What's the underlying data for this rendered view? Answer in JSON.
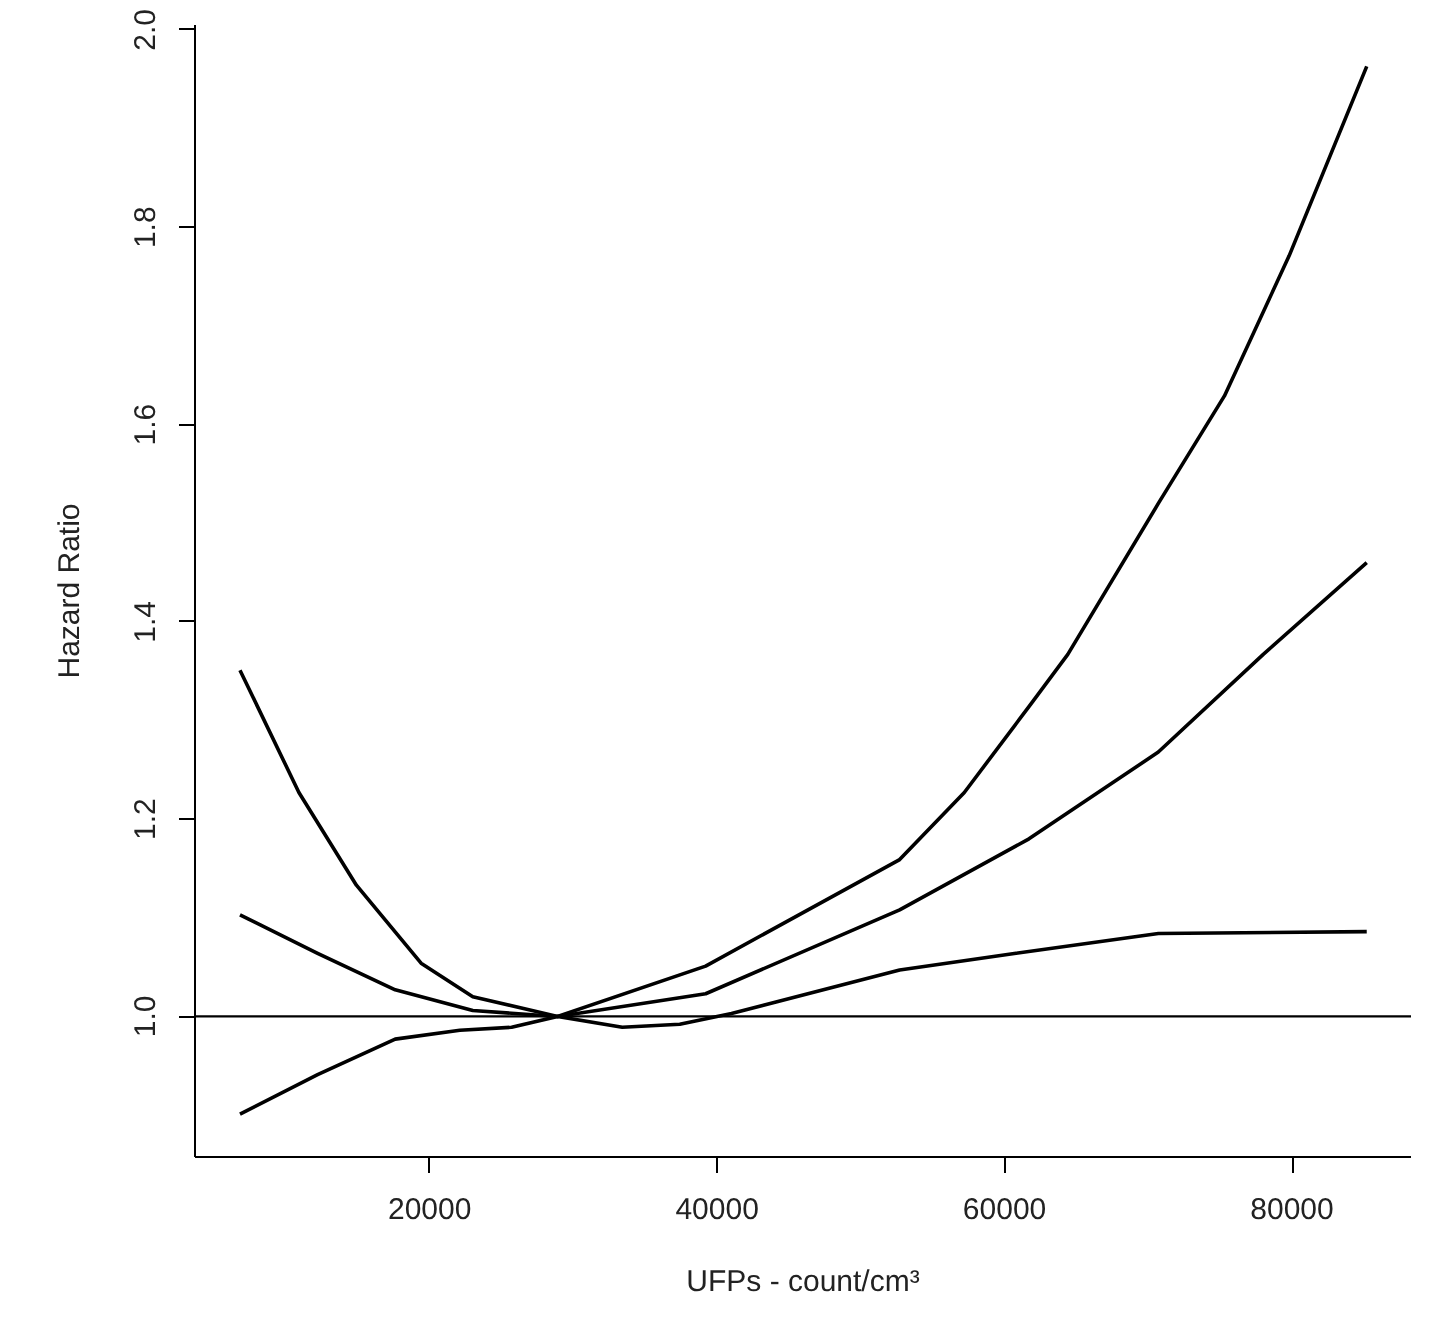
{
  "chart_data": {
    "type": "line",
    "xlabel": "UFPs - count/cm³",
    "ylabel": "Hazard Ratio",
    "xlim": [
      3670,
      88280
    ],
    "ylim": [
      0.8575,
      2.005
    ],
    "xticks": [
      20000,
      40000,
      60000,
      80000
    ],
    "yticks": [
      {
        "value": 1.0,
        "label": "1.0"
      },
      {
        "value": 1.2,
        "label": "1.2"
      },
      {
        "value": 1.4,
        "label": "1.4"
      },
      {
        "value": 1.6,
        "label": "1.6"
      },
      {
        "value": 1.8,
        "label": "1.8"
      },
      {
        "value": 2.0,
        "label": "2.0"
      }
    ],
    "grid": false,
    "marker": "none",
    "line_style": "solid",
    "ref_lines": [
      {
        "axis": "y",
        "value": 1.0,
        "color": "#000000"
      }
    ],
    "series": [
      {
        "color": "#000000",
        "x": [
          6800,
          12200,
          17600,
          23000,
          28900,
          39200,
          52700,
          61700,
          70700,
          78000,
          85200
        ],
        "values": [
          1.103,
          1.064,
          1.027,
          1.006,
          1.0,
          1.023,
          1.108,
          1.18,
          1.268,
          1.367,
          1.46
        ]
      },
      {
        "color": "#000000",
        "x": [
          6800,
          10900,
          14900,
          19400,
          23000,
          28900,
          39200,
          52700,
          57200,
          61800,
          64400,
          70700,
          75300,
          79800,
          85200
        ],
        "values": [
          1.351,
          1.227,
          1.133,
          1.054,
          1.02,
          1.0,
          1.051,
          1.159,
          1.227,
          1.316,
          1.367,
          1.52,
          1.629,
          1.771,
          1.963
        ]
      },
      {
        "color": "#000000",
        "x": [
          6800,
          12200,
          17600,
          22100,
          25700,
          28900,
          33400,
          37400,
          41000,
          52700,
          60800,
          70700,
          85200
        ],
        "values": [
          0.901,
          0.941,
          0.977,
          0.986,
          0.989,
          1.0,
          0.989,
          0.992,
          1.003,
          1.047,
          1.064,
          1.084,
          1.086
        ]
      }
    ]
  }
}
